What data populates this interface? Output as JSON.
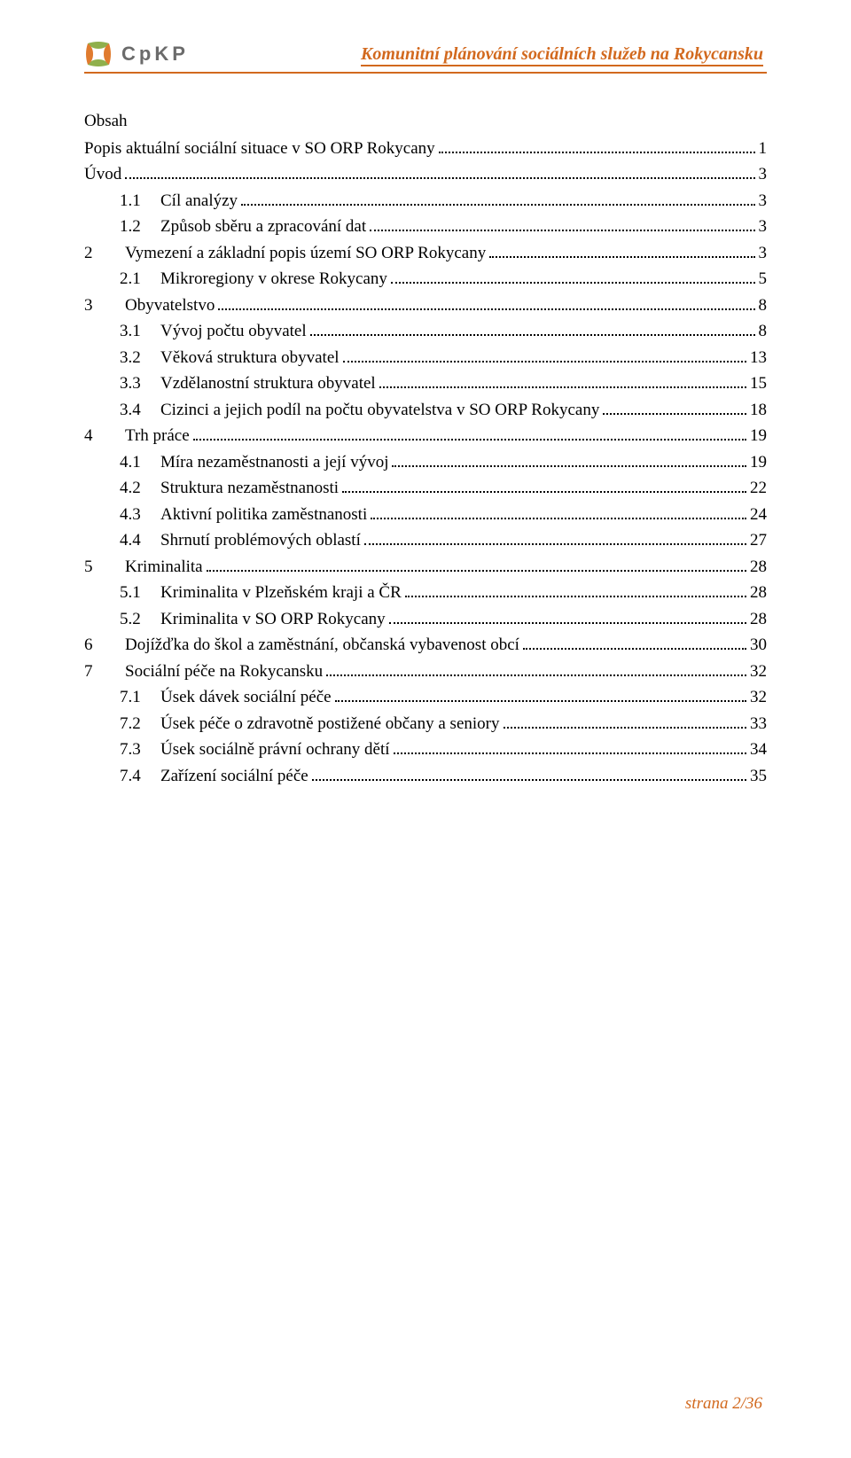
{
  "header": {
    "logo_text": "CpKP",
    "title": "Komunitní plánování sociálních služeb na Rokycansku",
    "logo_colors": {
      "green": "#8fb04c",
      "orange": "#e07b2e",
      "gray": "#6b6b6b"
    }
  },
  "obsah_label": "Obsah",
  "toc": [
    {
      "indent": 0,
      "num": "",
      "label": "Popis aktuální sociální situace v SO ORP Rokycany",
      "page": "1"
    },
    {
      "indent": 0,
      "num": "",
      "label": "Úvod",
      "page": "3"
    },
    {
      "indent": 1,
      "num": "1.1",
      "label": "Cíl analýzy",
      "page": "3"
    },
    {
      "indent": 1,
      "num": "1.2",
      "label": "Způsob sběru a zpracování dat",
      "page": "3"
    },
    {
      "indent": 0,
      "num": "2",
      "label": "Vymezení a základní popis území SO ORP Rokycany",
      "page": "3"
    },
    {
      "indent": 1,
      "num": "2.1",
      "label": "Mikroregiony v okrese Rokycany",
      "page": "5"
    },
    {
      "indent": 0,
      "num": "3",
      "label": "Obyvatelstvo",
      "page": "8"
    },
    {
      "indent": 1,
      "num": "3.1",
      "label": "Vývoj počtu obyvatel",
      "page": "8"
    },
    {
      "indent": 1,
      "num": "3.2",
      "label": "Věková struktura obyvatel",
      "page": "13"
    },
    {
      "indent": 1,
      "num": "3.3",
      "label": "Vzdělanostní struktura obyvatel",
      "page": "15"
    },
    {
      "indent": 1,
      "num": "3.4",
      "label": "Cizinci a jejich podíl na počtu obyvatelstva v SO ORP Rokycany",
      "page": "18"
    },
    {
      "indent": 0,
      "num": "4",
      "label": "Trh práce",
      "page": "19"
    },
    {
      "indent": 1,
      "num": "4.1",
      "label": "Míra nezaměstnanosti a její vývoj",
      "page": "19"
    },
    {
      "indent": 1,
      "num": "4.2",
      "label": "Struktura nezaměstnanosti",
      "page": "22"
    },
    {
      "indent": 1,
      "num": "4.3",
      "label": "Aktivní politika zaměstnanosti",
      "page": "24"
    },
    {
      "indent": 1,
      "num": "4.4",
      "label": "Shrnutí problémových oblastí",
      "page": "27"
    },
    {
      "indent": 0,
      "num": "5",
      "label": "Kriminalita",
      "page": "28"
    },
    {
      "indent": 1,
      "num": "5.1",
      "label": "Kriminalita v Plzeňském kraji a ČR",
      "page": "28"
    },
    {
      "indent": 1,
      "num": "5.2",
      "label": "Kriminalita v SO ORP Rokycany",
      "page": "28"
    },
    {
      "indent": 0,
      "num": "6",
      "label": "Dojížďka do škol a zaměstnání, občanská vybavenost obcí",
      "page": "30"
    },
    {
      "indent": 0,
      "num": "7",
      "label": "Sociální péče na Rokycansku",
      "page": "32"
    },
    {
      "indent": 1,
      "num": "7.1",
      "label": "Úsek dávek sociální péče",
      "page": "32"
    },
    {
      "indent": 1,
      "num": "7.2",
      "label": "Úsek péče o zdravotně postižené občany a seniory",
      "page": "33"
    },
    {
      "indent": 1,
      "num": "7.3",
      "label": "Úsek sociálně právní ochrany dětí",
      "page": "34"
    },
    {
      "indent": 1,
      "num": "7.4",
      "label": "Zařízení sociální péče",
      "page": "35"
    }
  ],
  "footer": {
    "text": "strana 2/36",
    "color": "#d2691e"
  }
}
